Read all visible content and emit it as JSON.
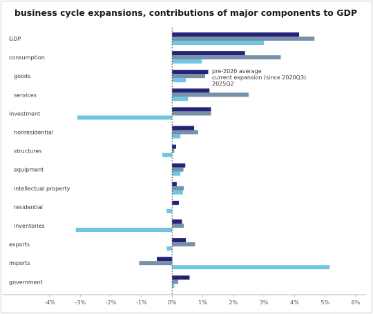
{
  "chart_data": {
    "type": "bar",
    "orientation": "horizontal",
    "title": "business cycle expansions, contributions of major components to GDP",
    "xlabel": "",
    "ylabel": "",
    "xlim": [
      -4,
      6
    ],
    "x_ticks": [
      "-4%",
      "-3%",
      "-2%",
      "-1%",
      "0%",
      "1%",
      "2%",
      "3%",
      "4%",
      "5%",
      "6%"
    ],
    "legend_position": "inside, upper-middle",
    "categories": [
      "GDP",
      "consumption",
      "goods",
      "services",
      "investment",
      "nonresidential",
      "structures",
      "equipment",
      "intellectual property",
      "residential",
      "inventories",
      "exports",
      "imports",
      "government"
    ],
    "category_indent": [
      false,
      false,
      true,
      true,
      false,
      true,
      true,
      true,
      true,
      true,
      true,
      false,
      false,
      false
    ],
    "series": [
      {
        "name": "pre-2020 average",
        "color": "#23237a",
        "values": [
          4.15,
          2.38,
          1.18,
          1.22,
          1.27,
          0.72,
          0.13,
          0.43,
          0.15,
          0.22,
          0.32,
          0.45,
          -0.5,
          0.57
        ]
      },
      {
        "name": "current expansion (since 2020Q3)",
        "color": "#7891a8",
        "values": [
          4.65,
          3.55,
          1.08,
          2.5,
          1.27,
          0.85,
          0.07,
          0.37,
          0.38,
          0.0,
          0.38,
          0.75,
          -1.08,
          0.2
        ]
      },
      {
        "name": "2025Q2",
        "color": "#6fc6e3",
        "values": [
          3.0,
          0.97,
          0.45,
          0.52,
          -3.1,
          0.27,
          -0.32,
          0.27,
          0.35,
          -0.18,
          -3.15,
          -0.18,
          5.15,
          0.07
        ]
      }
    ]
  }
}
